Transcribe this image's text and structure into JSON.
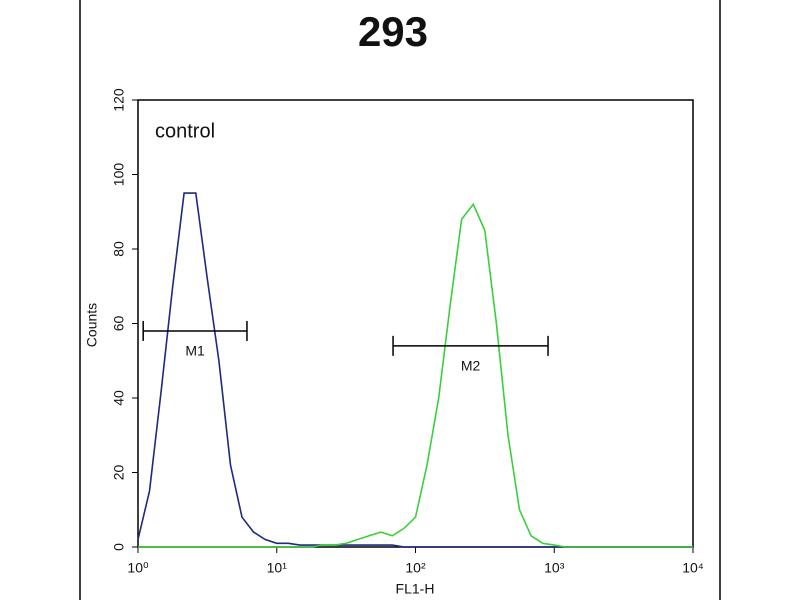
{
  "chart_data": {
    "type": "histogram-line",
    "title": "293",
    "x_label": "FL1-H",
    "y_label": "Counts",
    "x_scale": "log",
    "xlim": [
      1,
      10000
    ],
    "ylim": [
      0,
      120
    ],
    "xticks": [
      {
        "value": 1,
        "label": "10⁰"
      },
      {
        "value": 10,
        "label": "10¹"
      },
      {
        "value": 100,
        "label": "10²"
      },
      {
        "value": 1000,
        "label": "10³"
      },
      {
        "value": 10000,
        "label": "10⁴"
      }
    ],
    "yticks": [
      0,
      20,
      40,
      60,
      80,
      100,
      120
    ],
    "x": [
      1,
      1.21,
      1.47,
      1.78,
      2.15,
      2.61,
      3.16,
      3.83,
      4.64,
      5.62,
      6.81,
      8.25,
      10,
      12.1,
      14.7,
      17.8,
      21.5,
      26.1,
      31.6,
      38.3,
      46.4,
      56.2,
      68.1,
      82.5,
      100,
      121,
      147,
      178,
      215,
      261,
      316,
      383,
      464,
      562,
      681,
      825,
      1000,
      1210,
      1470,
      1780,
      2150,
      2610,
      3160,
      3830,
      4640,
      5620,
      6810,
      8250,
      10000
    ],
    "series": [
      {
        "name": "control",
        "color": "#1c2a80",
        "values": [
          2,
          15,
          42,
          70,
          95,
          95,
          72,
          50,
          22,
          8,
          4,
          2,
          1,
          1,
          0.5,
          0.5,
          0.5,
          0.5,
          0.5,
          0.5,
          0.5,
          0.5,
          0.5,
          0,
          0,
          0,
          0,
          0,
          0,
          0,
          0,
          0,
          0,
          0,
          0,
          0,
          0,
          0,
          0,
          0,
          0,
          0,
          0,
          0,
          0,
          0,
          0,
          0,
          0
        ]
      },
      {
        "color": "#3ccf3c",
        "values": [
          0,
          0,
          0,
          0,
          0,
          0,
          0,
          0,
          0,
          0,
          0,
          0,
          0,
          0,
          0,
          0,
          0.5,
          0.5,
          1,
          2,
          3,
          4,
          3,
          5,
          8,
          22,
          40,
          65,
          88,
          92,
          85,
          60,
          30,
          10,
          3,
          1,
          0.5,
          0,
          0,
          0,
          0,
          0,
          0,
          0,
          0,
          0,
          0,
          0,
          0
        ]
      }
    ],
    "markers": [
      {
        "label": "M1",
        "x": [
          1.09,
          6.1
        ],
        "y": 58
      },
      {
        "label": "M2",
        "x": [
          68.9,
          902
        ],
        "y": 54
      }
    ]
  }
}
